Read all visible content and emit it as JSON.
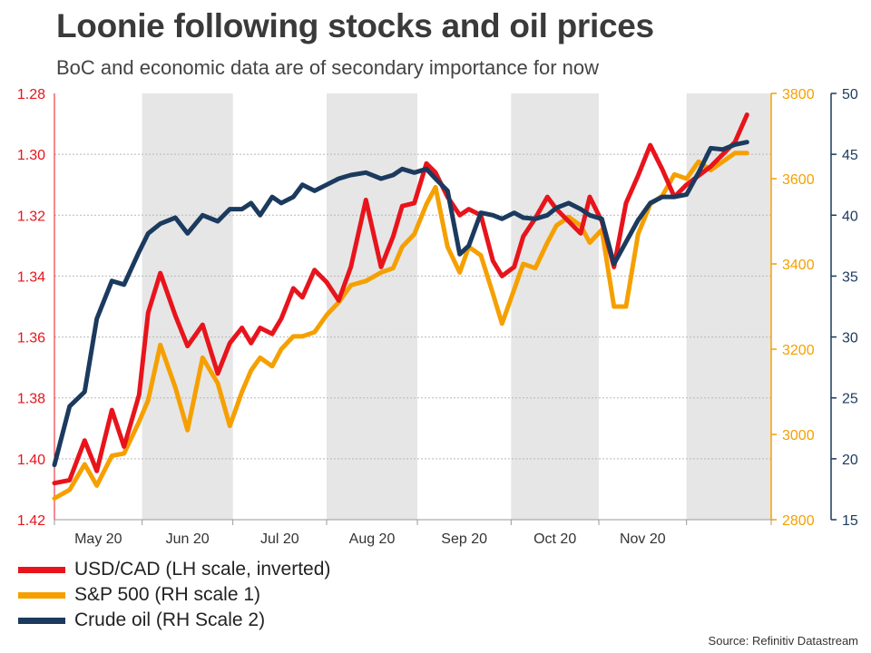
{
  "chart_data": {
    "type": "line",
    "title": "Loonie following stocks and oil prices",
    "subtitle": "BoC and economic data are of secondary importance for now",
    "x_labels": [
      "May 20",
      "Jun 20",
      "Jul 20",
      "Aug 20",
      "Sep 20",
      "Oct 20",
      "Nov 20"
    ],
    "x_range": [
      0,
      237
    ],
    "month_starts": [
      0,
      29,
      59,
      90,
      120,
      151,
      180,
      209,
      237
    ],
    "shaded_months": [
      1,
      3,
      5,
      7
    ],
    "axes": {
      "left": {
        "label": "USD/CAD (inverted)",
        "min": 1.28,
        "max": 1.42,
        "inverted": true,
        "ticks": [
          "1.28",
          "1.30",
          "1.32",
          "1.34",
          "1.36",
          "1.38",
          "1.40",
          "1.42"
        ],
        "color": "#e8141c"
      },
      "right1": {
        "min": 2800,
        "max": 3800,
        "ticks": [
          "2800",
          "3000",
          "3200",
          "3400",
          "3600",
          "3800"
        ],
        "color": "#f5a000"
      },
      "right2": {
        "min": 15,
        "max": 50,
        "ticks": [
          "15",
          "20",
          "25",
          "30",
          "35",
          "40",
          "45",
          "50"
        ],
        "color": "#1b3a5e"
      }
    },
    "series": [
      {
        "name": "USD/CAD (LH scale, inverted)",
        "axis": "left",
        "color": "#e8141c",
        "x": [
          0,
          5,
          10,
          14,
          19,
          23,
          28,
          31,
          35,
          40,
          44,
          49,
          54,
          58,
          62,
          65,
          68,
          72,
          75,
          79,
          82,
          86,
          90,
          94,
          98,
          103,
          108,
          112,
          115,
          119,
          123,
          126,
          130,
          134,
          137,
          141,
          145,
          148,
          152,
          155,
          159,
          163,
          166,
          170,
          174,
          177,
          181,
          185,
          189,
          193,
          197,
          201,
          205,
          209,
          213,
          217,
          221,
          225,
          229
        ],
        "values": [
          1.408,
          1.407,
          1.394,
          1.404,
          1.384,
          1.396,
          1.379,
          1.352,
          1.339,
          1.353,
          1.363,
          1.356,
          1.372,
          1.362,
          1.357,
          1.362,
          1.357,
          1.359,
          1.354,
          1.344,
          1.347,
          1.338,
          1.342,
          1.348,
          1.337,
          1.315,
          1.337,
          1.327,
          1.317,
          1.316,
          1.303,
          1.306,
          1.314,
          1.32,
          1.318,
          1.32,
          1.335,
          1.34,
          1.337,
          1.327,
          1.321,
          1.314,
          1.318,
          1.322,
          1.326,
          1.314,
          1.322,
          1.337,
          1.316,
          1.307,
          1.297,
          1.305,
          1.314,
          1.31,
          1.307,
          1.304,
          1.3,
          1.296,
          1.287
        ]
      },
      {
        "name": "S&P 500 (RH scale 1)",
        "axis": "right1",
        "color": "#f5a000",
        "x": [
          0,
          5,
          10,
          14,
          19,
          23,
          28,
          31,
          35,
          40,
          44,
          49,
          54,
          58,
          62,
          65,
          68,
          72,
          75,
          79,
          82,
          86,
          90,
          94,
          98,
          103,
          108,
          112,
          115,
          119,
          123,
          126,
          130,
          134,
          137,
          141,
          145,
          148,
          152,
          155,
          159,
          163,
          166,
          170,
          174,
          177,
          181,
          185,
          189,
          193,
          197,
          201,
          205,
          209,
          213,
          217,
          221,
          225,
          229
        ],
        "values": [
          2850,
          2870,
          2930,
          2880,
          2950,
          2955,
          3030,
          3080,
          3210,
          3110,
          3010,
          3180,
          3120,
          3020,
          3100,
          3150,
          3180,
          3160,
          3200,
          3230,
          3230,
          3240,
          3280,
          3310,
          3350,
          3360,
          3380,
          3390,
          3440,
          3470,
          3540,
          3580,
          3440,
          3380,
          3440,
          3420,
          3330,
          3260,
          3340,
          3400,
          3390,
          3450,
          3490,
          3510,
          3490,
          3450,
          3480,
          3300,
          3300,
          3470,
          3540,
          3560,
          3610,
          3600,
          3640,
          3620,
          3640,
          3660,
          3660
        ]
      },
      {
        "name": "Crude oil (RH Scale 2)",
        "axis": "right2",
        "color": "#1b3a5e",
        "x": [
          0,
          5,
          10,
          14,
          19,
          23,
          28,
          31,
          35,
          40,
          44,
          49,
          54,
          58,
          62,
          65,
          68,
          72,
          75,
          79,
          82,
          86,
          90,
          94,
          98,
          103,
          108,
          112,
          115,
          119,
          123,
          126,
          130,
          134,
          137,
          141,
          145,
          148,
          152,
          155,
          159,
          163,
          166,
          170,
          174,
          177,
          181,
          185,
          189,
          193,
          197,
          201,
          205,
          209,
          213,
          217,
          221,
          225,
          229
        ],
        "values": [
          19.5,
          24.3,
          25.5,
          31.5,
          34.6,
          34.3,
          37.0,
          38.5,
          39.3,
          39.8,
          38.5,
          40.0,
          39.5,
          40.5,
          40.5,
          41.0,
          40.0,
          41.5,
          41.0,
          41.5,
          42.5,
          42.0,
          42.5,
          43.0,
          43.3,
          43.5,
          43.0,
          43.3,
          43.8,
          43.5,
          43.8,
          43.0,
          42.0,
          36.8,
          37.5,
          40.2,
          40.0,
          39.7,
          40.2,
          39.8,
          39.7,
          40.0,
          40.6,
          41.0,
          40.5,
          40.0,
          39.7,
          36.0,
          37.8,
          39.6,
          41.0,
          41.5,
          41.5,
          41.7,
          43.5,
          45.5,
          45.4,
          45.8,
          46.0
        ]
      }
    ],
    "legend": [
      "USD/CAD (LH scale, inverted)",
      "S&P 500 (RH scale 1)",
      "Crude oil (RH Scale 2)"
    ],
    "source": "Source: Refinitiv Datastream"
  }
}
